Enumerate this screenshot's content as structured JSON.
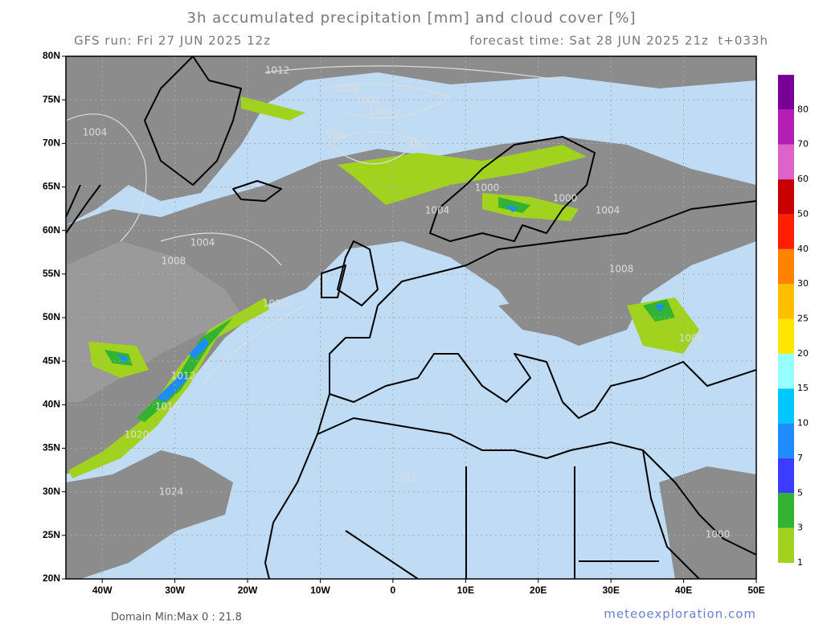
{
  "header": {
    "title": "3h accumulated precipitation [mm] and cloud cover [%]",
    "run": "GFS run: Fri 27 JUN 2025 12z",
    "forecast": "forecast time: Sat 28 JUN 2025 21z  t+033h"
  },
  "map": {
    "lat_labels": [
      "80N",
      "75N",
      "70N",
      "65N",
      "60N",
      "55N",
      "50N",
      "45N",
      "40N",
      "35N",
      "30N",
      "25N",
      "20N"
    ],
    "lon_labels": [
      "40W",
      "30W",
      "20W",
      "10W",
      "0",
      "10E",
      "20E",
      "30E",
      "40E",
      "50E"
    ],
    "isobar_labels": [
      "1012",
      "1008",
      "1004",
      "1000",
      "996",
      "992",
      "1004",
      "1004",
      "1008",
      "1020",
      "1012",
      "1016",
      "1020",
      "1024",
      "1000",
      "1000",
      "1004",
      "1004",
      "1008",
      "1004",
      "1000",
      "1016"
    ]
  },
  "colorbar": {
    "labels": [
      "1",
      "3",
      "5",
      "7",
      "10",
      "15",
      "20",
      "25",
      "30",
      "40",
      "50",
      "60",
      "70",
      "80"
    ],
    "colors": [
      "#a0d21e",
      "#32b432",
      "#3c3cff",
      "#1e8cff",
      "#00c8ff",
      "#96ffff",
      "#ffe600",
      "#ffbe00",
      "#ff8200",
      "#ff1e00",
      "#c80000",
      "#dc64c8",
      "#b41eb4",
      "#780096"
    ]
  },
  "footer": {
    "domain": "Domain Min:Max 0 : 21.8",
    "credit": "meteoexploration.com"
  }
}
